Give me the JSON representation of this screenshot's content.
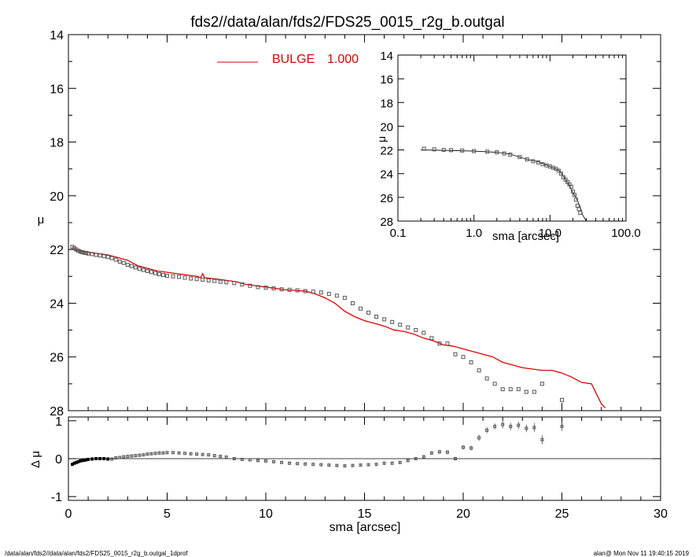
{
  "title": "fds2//data/alan/fds2/FDS25_0015_r2g_b.outgal",
  "footer": {
    "left": "/data/alan/fds2//data/alan/fds2/FDS25_0015_r2g_b.outgal_1dprof",
    "right": "alan@  Mon Nov 11 19:40:15 2019"
  },
  "colors": {
    "model": "#dd0000",
    "data": "#555555",
    "axis": "#000000"
  },
  "chart_data": [
    {
      "id": "main",
      "type": "scatter",
      "ylabel": "μ",
      "xlim": [
        0,
        30
      ],
      "ylim": [
        28,
        14
      ],
      "y_inverted": true,
      "yticks": [
        14,
        16,
        18,
        20,
        22,
        24,
        26,
        28
      ],
      "legend": {
        "label": "BULGE",
        "value": "1.000",
        "placement": "top-center"
      },
      "series": [
        {
          "name": "BULGE",
          "kind": "line",
          "x": [
            0.2,
            0.5,
            1.0,
            1.5,
            2.0,
            2.5,
            3.0,
            3.5,
            4.0,
            4.5,
            5.0,
            5.5,
            6.0,
            6.5,
            6.7,
            6.8,
            6.9,
            7.5,
            8.0,
            8.5,
            9.0,
            9.5,
            10.0,
            11.0,
            12.0,
            12.5,
            13.0,
            13.5,
            14.0,
            14.5,
            15.0,
            15.5,
            16.0,
            16.5,
            17.0,
            17.5,
            18.0,
            18.5,
            19.0,
            19.5,
            20.0,
            20.5,
            21.0,
            21.5,
            22.0,
            23.0,
            24.0,
            24.5,
            25.0,
            25.5,
            26.0,
            26.5,
            27.0,
            27.2
          ],
          "y": [
            22.0,
            22.05,
            22.1,
            22.15,
            22.2,
            22.3,
            22.4,
            22.6,
            22.7,
            22.8,
            22.85,
            22.9,
            22.95,
            23.0,
            23.05,
            22.9,
            23.05,
            23.1,
            23.15,
            23.2,
            23.3,
            23.35,
            23.4,
            23.5,
            23.55,
            23.65,
            23.8,
            24.0,
            24.3,
            24.5,
            24.65,
            24.75,
            24.85,
            25.0,
            25.05,
            25.15,
            25.3,
            25.4,
            25.55,
            25.6,
            25.7,
            25.8,
            25.9,
            26.0,
            26.2,
            26.4,
            26.5,
            26.5,
            26.6,
            26.75,
            26.95,
            27.0,
            27.75,
            27.9
          ]
        },
        {
          "name": "",
          "kind": "points",
          "x": [
            0.2,
            0.3,
            0.4,
            0.5,
            0.6,
            0.7,
            0.8,
            0.9,
            1.0,
            1.2,
            1.4,
            1.6,
            1.8,
            2.0,
            2.2,
            2.4,
            2.6,
            2.8,
            3.0,
            3.2,
            3.4,
            3.6,
            3.8,
            4.0,
            4.2,
            4.4,
            4.6,
            4.8,
            5.0,
            5.3,
            5.6,
            5.9,
            6.2,
            6.5,
            6.8,
            7.1,
            7.4,
            7.7,
            8.0,
            8.4,
            8.8,
            9.2,
            9.6,
            10.0,
            10.4,
            10.8,
            11.2,
            11.6,
            12.0,
            12.4,
            12.8,
            13.2,
            13.6,
            14.0,
            14.4,
            14.8,
            15.2,
            15.6,
            16.0,
            16.4,
            16.8,
            17.2,
            17.6,
            18.0,
            18.4,
            18.8,
            19.2,
            19.6,
            20.0,
            20.4,
            20.8,
            21.2,
            21.6,
            22.0,
            22.4,
            22.8,
            23.2,
            23.6,
            24.0,
            25.0
          ],
          "y": [
            21.9,
            21.95,
            22.0,
            22.05,
            22.08,
            22.1,
            22.12,
            22.13,
            22.15,
            22.17,
            22.2,
            22.22,
            22.25,
            22.28,
            22.32,
            22.38,
            22.45,
            22.5,
            22.57,
            22.62,
            22.67,
            22.72,
            22.76,
            22.8,
            22.84,
            22.88,
            22.92,
            22.95,
            22.98,
            23.0,
            23.02,
            23.05,
            23.08,
            23.1,
            23.12,
            23.15,
            23.17,
            23.2,
            23.22,
            23.25,
            23.3,
            23.35,
            23.4,
            23.42,
            23.45,
            23.48,
            23.5,
            23.52,
            23.55,
            23.57,
            23.6,
            23.65,
            23.72,
            23.8,
            24.0,
            24.2,
            24.35,
            24.5,
            24.6,
            24.7,
            24.8,
            24.9,
            25.0,
            25.1,
            25.3,
            25.5,
            25.5,
            25.9,
            26.0,
            26.2,
            26.5,
            26.8,
            27.0,
            27.2,
            27.2,
            27.2,
            27.3,
            27.3,
            27.0,
            27.6
          ]
        }
      ]
    },
    {
      "id": "residual",
      "type": "scatter",
      "xlabel": "sma [arcsec]",
      "ylabel": "Δ μ",
      "xlim": [
        0,
        30
      ],
      "ylim": [
        -1.1,
        1.1
      ],
      "xticks": [
        0,
        5,
        10,
        15,
        20,
        25,
        30
      ],
      "yticks": [
        -1,
        0,
        1
      ],
      "series": [
        {
          "name": "",
          "kind": "points",
          "x": [
            0.2,
            0.3,
            0.4,
            0.5,
            0.6,
            0.7,
            0.8,
            0.9,
            1.0,
            1.2,
            1.4,
            1.6,
            1.8,
            2.0,
            2.2,
            2.4,
            2.6,
            2.8,
            3.0,
            3.2,
            3.4,
            3.6,
            3.8,
            4.0,
            4.2,
            4.4,
            4.6,
            4.8,
            5.0,
            5.3,
            5.6,
            5.9,
            6.2,
            6.5,
            6.8,
            7.1,
            7.4,
            7.7,
            8.0,
            8.4,
            8.8,
            9.2,
            9.6,
            10.0,
            10.4,
            10.8,
            11.2,
            11.6,
            12.0,
            12.4,
            12.8,
            13.2,
            13.6,
            14.0,
            14.4,
            14.8,
            15.2,
            15.6,
            16.0,
            16.4,
            16.8,
            17.2,
            17.6,
            18.0,
            18.4,
            18.8,
            19.2,
            19.6,
            20.0,
            20.4,
            20.8,
            21.2,
            21.6,
            22.0,
            22.4,
            22.8,
            23.2,
            23.6,
            24.0,
            25.0
          ],
          "y": [
            -0.15,
            -0.12,
            -0.1,
            -0.08,
            -0.06,
            -0.05,
            -0.04,
            -0.03,
            -0.02,
            -0.01,
            0.0,
            0.0,
            0.0,
            -0.01,
            -0.01,
            0.02,
            0.03,
            0.05,
            0.06,
            0.07,
            0.08,
            0.09,
            0.1,
            0.12,
            0.13,
            0.14,
            0.15,
            0.15,
            0.16,
            0.16,
            0.15,
            0.14,
            0.13,
            0.12,
            0.11,
            0.1,
            0.08,
            0.06,
            0.04,
            0.0,
            -0.02,
            -0.03,
            -0.05,
            -0.06,
            -0.08,
            -0.1,
            -0.12,
            -0.13,
            -0.14,
            -0.15,
            -0.16,
            -0.17,
            -0.18,
            -0.19,
            -0.18,
            -0.17,
            -0.16,
            -0.15,
            -0.12,
            -0.12,
            -0.1,
            -0.05,
            0.0,
            0.05,
            0.15,
            0.18,
            0.17,
            0.0,
            0.3,
            0.28,
            0.55,
            0.75,
            0.85,
            0.9,
            0.85,
            0.88,
            0.8,
            0.82,
            0.5,
            0.85
          ],
          "err": [
            0.03,
            0.03,
            0.03,
            0.03,
            0.03,
            0.03,
            0.03,
            0.03,
            0.03,
            0.03,
            0.03,
            0.03,
            0.03,
            0.03,
            0.03,
            0.03,
            0.03,
            0.03,
            0.03,
            0.03,
            0.03,
            0.03,
            0.03,
            0.03,
            0.03,
            0.03,
            0.03,
            0.03,
            0.03,
            0.03,
            0.03,
            0.03,
            0.03,
            0.03,
            0.03,
            0.03,
            0.03,
            0.03,
            0.03,
            0.03,
            0.03,
            0.03,
            0.03,
            0.03,
            0.03,
            0.03,
            0.03,
            0.03,
            0.03,
            0.03,
            0.03,
            0.03,
            0.03,
            0.03,
            0.03,
            0.03,
            0.03,
            0.03,
            0.03,
            0.03,
            0.03,
            0.04,
            0.04,
            0.04,
            0.05,
            0.05,
            0.05,
            0.05,
            0.06,
            0.06,
            0.08,
            0.08,
            0.08,
            0.1,
            0.1,
            0.1,
            0.1,
            0.12,
            0.12,
            0.12
          ]
        }
      ],
      "reference_line": 0
    },
    {
      "id": "inset",
      "type": "line",
      "xlabel": "sma [arcsec]",
      "ylabel": "μ",
      "xscale": "log",
      "xlim": [
        0.1,
        100
      ],
      "ylim": [
        28,
        14
      ],
      "xtick_labels": [
        "0.1",
        "1.0",
        "10.0",
        "100.0"
      ],
      "xticks": [
        0.1,
        1,
        10,
        100
      ],
      "yticks": [
        14,
        16,
        18,
        20,
        22,
        24,
        26,
        28
      ],
      "series": [
        {
          "name": "",
          "kind": "points",
          "x": [
            0.22,
            0.3,
            0.4,
            0.5,
            0.7,
            1.0,
            1.5,
            2.0,
            2.5,
            3.0,
            4.0,
            5.0,
            6.0,
            7.0,
            8.0,
            9.0,
            10,
            11,
            12,
            13,
            14,
            15,
            16,
            17,
            18,
            19,
            20,
            21,
            22,
            23,
            24,
            25
          ],
          "y": [
            21.9,
            21.95,
            22.0,
            22.02,
            22.05,
            22.1,
            22.15,
            22.2,
            22.3,
            22.4,
            22.6,
            22.8,
            22.95,
            23.05,
            23.2,
            23.3,
            23.4,
            23.5,
            23.6,
            23.75,
            24.0,
            24.3,
            24.5,
            24.7,
            24.9,
            25.1,
            25.5,
            25.8,
            26.2,
            26.7,
            27.0,
            27.3
          ]
        },
        {
          "name": "",
          "kind": "line",
          "x": [
            0.2,
            0.5,
            1.0,
            2.0,
            3.0,
            5.0,
            7.0,
            10,
            13,
            15,
            18,
            20,
            22,
            25,
            27,
            30
          ],
          "y": [
            22.0,
            22.05,
            22.1,
            22.2,
            22.35,
            22.8,
            23.0,
            23.4,
            23.7,
            24.2,
            25.0,
            25.6,
            26.0,
            26.8,
            27.5,
            28.0
          ]
        }
      ]
    }
  ]
}
